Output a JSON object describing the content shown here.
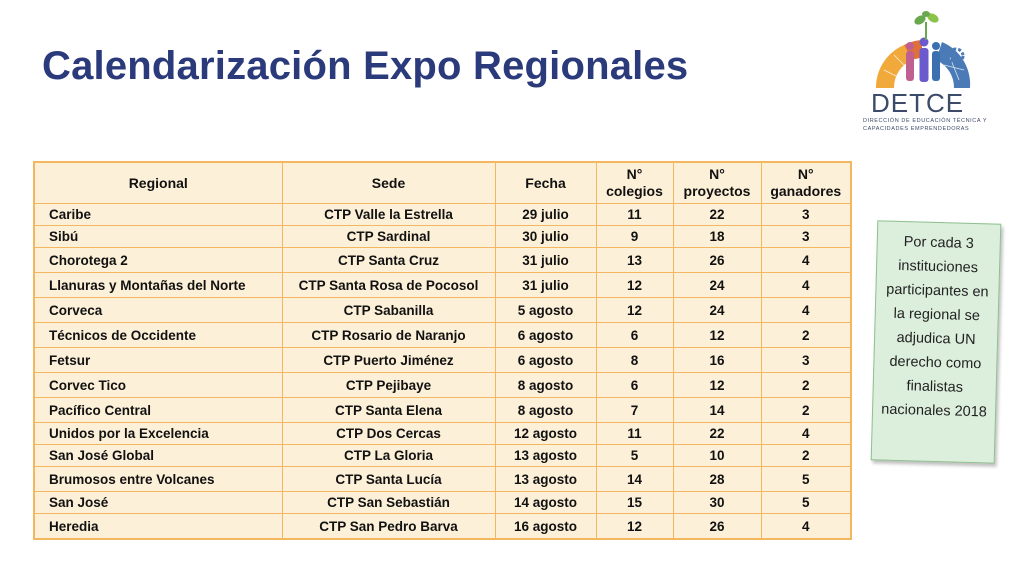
{
  "title": "Calendarización Expo Regionales",
  "logo": {
    "name": "DETCE",
    "subtitle": "DIRECCIÓN DE EDUCACIÓN TÉCNICA Y CAPACIDADES EMPRENDEDORAS"
  },
  "table": {
    "headers": [
      "Regional",
      "Sede",
      "Fecha",
      "N° colegios",
      "N° proyectos",
      "N° ganadores"
    ],
    "rows": [
      [
        "Caribe",
        "CTP Valle la Estrella",
        "29 julio",
        "11",
        "22",
        "3"
      ],
      [
        "Sibú",
        "CTP Sardinal",
        "30 julio",
        "9",
        "18",
        "3"
      ],
      [
        "Chorotega 2",
        "CTP Santa Cruz",
        "31 julio",
        "13",
        "26",
        "4"
      ],
      [
        "Llanuras y Montañas del Norte",
        "CTP Santa Rosa de Pocosol",
        "31 julio",
        "12",
        "24",
        "4"
      ],
      [
        "Corveca",
        "CTP Sabanilla",
        "5 agosto",
        "12",
        "24",
        "4"
      ],
      [
        "Técnicos de Occidente",
        "CTP Rosario de Naranjo",
        "6 agosto",
        "6",
        "12",
        "2"
      ],
      [
        "Fetsur",
        "CTP Puerto Jiménez",
        "6 agosto",
        "8",
        "16",
        "3"
      ],
      [
        "Corvec Tico",
        "CTP Pejibaye",
        "8 agosto",
        "6",
        "12",
        "2"
      ],
      [
        "Pacífico Central",
        "CTP Santa Elena",
        "8 agosto",
        "7",
        "14",
        "2"
      ],
      [
        "Unidos por la Excelencia",
        "CTP Dos Cercas",
        "12 agosto",
        "11",
        "22",
        "4"
      ],
      [
        "San José Global",
        "CTP La Gloria",
        "13 agosto",
        "5",
        "10",
        "2"
      ],
      [
        "Brumosos entre Volcanes",
        "CTP Santa Lucía",
        "13 agosto",
        "14",
        "28",
        "5"
      ],
      [
        "San José",
        "CTP San Sebastián",
        "14 agosto",
        "15",
        "30",
        "5"
      ],
      [
        "Heredia",
        "CTP San Pedro Barva",
        "16 agosto",
        "12",
        "26",
        "4"
      ]
    ]
  },
  "note": "Por cada 3 instituciones participantes en la regional se adjudica UN derecho como finalistas nacionales 2018",
  "colors": {
    "title": "#2b3a7a",
    "table_bg": "#fdf0d8",
    "table_border": "#f2b75f",
    "note_bg": "#dcefdc"
  }
}
